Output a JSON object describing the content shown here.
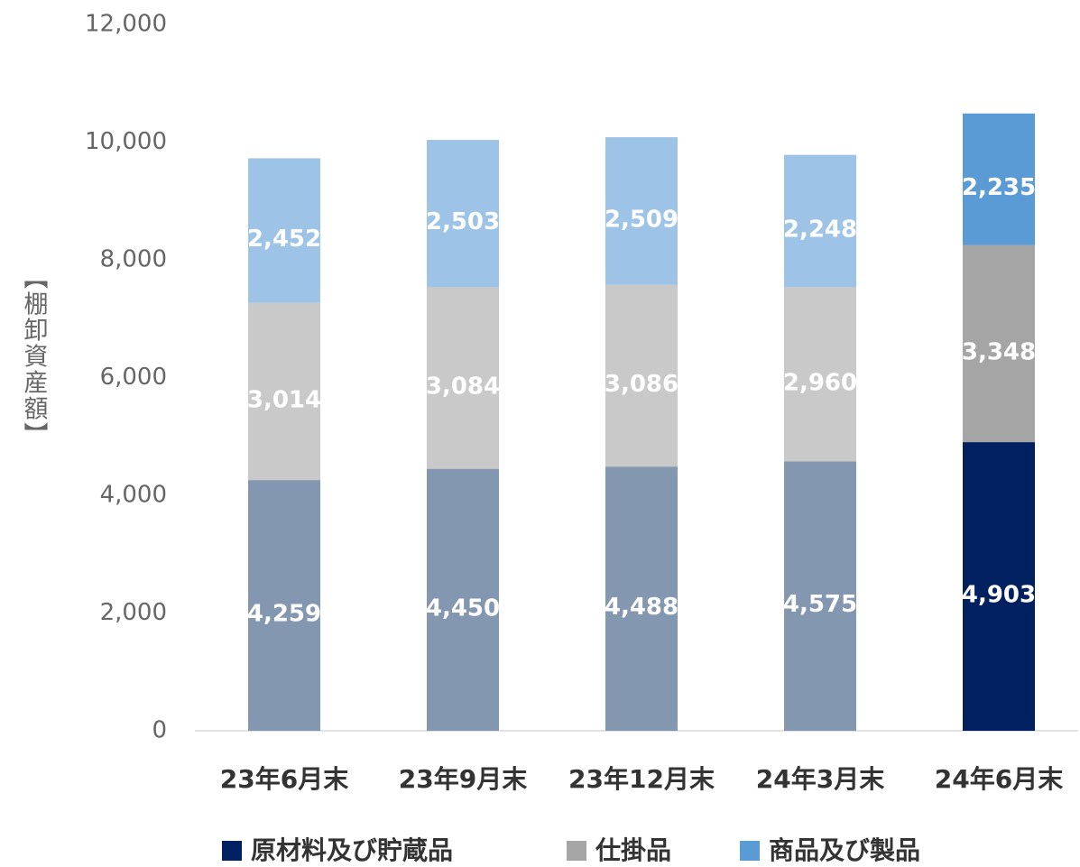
{
  "chart_data": {
    "type": "stacked_bar",
    "y_label": "【棚卸資産額】",
    "categories": [
      "23年6月末",
      "23年9月末",
      "23年12月末",
      "24年3月末",
      "24年6月末"
    ],
    "series": [
      {
        "name": "原材料及び貯蔵品",
        "color": "#002060",
        "colors": [
          "#8497b0",
          "#8497b0",
          "#8497b0",
          "#8497b0",
          "#002060"
        ],
        "values": [
          4259,
          4450,
          4488,
          4575,
          4903
        ],
        "value_labels": [
          "4,259",
          "4,450",
          "4,488",
          "4,575",
          "4,903"
        ]
      },
      {
        "name": "仕掛品",
        "color": "#a5a5a5",
        "colors": [
          "#c9c9c9",
          "#c9c9c9",
          "#c9c9c9",
          "#c9c9c9",
          "#a5a5a5"
        ],
        "values": [
          3014,
          3084,
          3086,
          2960,
          3348
        ],
        "value_labels": [
          "3,014",
          "3,084",
          "3,086",
          "2,960",
          "3,348"
        ]
      },
      {
        "name": "商品及び製品",
        "color": "#5b9bd5",
        "colors": [
          "#9dc3e6",
          "#9dc3e6",
          "#9dc3e6",
          "#9dc3e6",
          "#5b9bd5"
        ],
        "values": [
          2452,
          2503,
          2509,
          2248,
          2235
        ],
        "value_labels": [
          "2,452",
          "2,503",
          "2,509",
          "2,248",
          "2,235"
        ]
      }
    ],
    "ylim": [
      0,
      12000
    ],
    "yticks": [
      0,
      {
        "value": 2000,
        "label": "2,000"
      },
      {
        "value": 4000,
        "label": "4,000"
      },
      {
        "value": 6000,
        "label": "6,000"
      },
      {
        "value": 8000,
        "label": "8,000"
      },
      {
        "value": 10000,
        "label": "10,000"
      },
      {
        "value": 12000,
        "label": "12,000"
      }
    ],
    "grid": false,
    "legend": "bottom"
  }
}
